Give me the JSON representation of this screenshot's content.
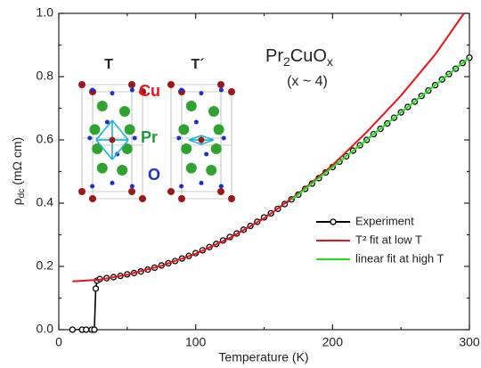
{
  "chart_data": {
    "type": "line",
    "xlabel": "Temperature (K)",
    "ylabel": {
      "symbol": "ρ",
      "sub": "dc",
      "unit": " (mΩ cm)"
    },
    "formula": {
      "a": "Pr",
      "b": "2",
      "c": "CuO",
      "d": "x"
    },
    "formula_note": "(x ~ 4)",
    "structure_labels": {
      "left": "T",
      "right": "T´",
      "cu": "Cu",
      "pr": "Pr",
      "o": "O"
    },
    "xlim": [
      0,
      300
    ],
    "ylim": [
      0,
      1.0
    ],
    "xticks": [
      0,
      100,
      200,
      300
    ],
    "yticks": [
      {
        "value": 0,
        "label": "0.0"
      },
      {
        "value": 0.2,
        "label": "0.2"
      },
      {
        "value": 0.4,
        "label": "0.4"
      },
      {
        "value": 0.6,
        "label": "0.6"
      },
      {
        "value": 0.8,
        "label": "0.8"
      },
      {
        "value": 1.0,
        "label": "1.0"
      }
    ],
    "x_minor_ticks": [
      50,
      150,
      250
    ],
    "y_minor_ticks": [
      0.1,
      0.3,
      0.5,
      0.7,
      0.9
    ],
    "series": [
      {
        "name": "Experiment",
        "color": "#000000",
        "marker": true,
        "x": [
          10,
          17,
          20,
          24,
          26,
          27,
          28,
          30,
          35,
          40,
          45,
          50,
          55,
          60,
          65,
          70,
          75,
          80,
          85,
          90,
          95,
          100,
          105,
          110,
          115,
          120,
          125,
          130,
          135,
          140,
          145,
          150,
          155,
          160,
          165,
          170,
          175,
          180,
          185,
          190,
          195,
          200,
          205,
          210,
          215,
          220,
          225,
          230,
          235,
          240,
          245,
          250,
          255,
          260,
          265,
          270,
          275,
          280,
          285,
          290,
          295,
          300
        ],
        "values": [
          0,
          0,
          0,
          0,
          0,
          0.13,
          0.155,
          0.16,
          0.163,
          0.166,
          0.17,
          0.175,
          0.179,
          0.184,
          0.19,
          0.196,
          0.203,
          0.21,
          0.217,
          0.225,
          0.233,
          0.242,
          0.251,
          0.261,
          0.271,
          0.282,
          0.293,
          0.304,
          0.316,
          0.328,
          0.341,
          0.355,
          0.368,
          0.382,
          0.397,
          0.412,
          0.427,
          0.445,
          0.462,
          0.479,
          0.497,
          0.514,
          0.531,
          0.548,
          0.566,
          0.583,
          0.6,
          0.618,
          0.635,
          0.652,
          0.67,
          0.687,
          0.704,
          0.721,
          0.739,
          0.756,
          0.773,
          0.791,
          0.808,
          0.825,
          0.843,
          0.86
        ]
      },
      {
        "name": "T² fit at low T",
        "color": "#e8141a",
        "marker": false,
        "x": [
          10,
          30,
          50,
          75,
          100,
          125,
          150,
          175,
          200,
          225,
          250,
          275,
          296
        ],
        "values": [
          0.153,
          0.158,
          0.174,
          0.202,
          0.24,
          0.29,
          0.352,
          0.43,
          0.52,
          0.625,
          0.74,
          0.87,
          1.0
        ]
      },
      {
        "name": "linear fit at high T",
        "color": "#22e01e",
        "marker": false,
        "x": [
          170,
          300
        ],
        "values": [
          0.41,
          0.86
        ]
      }
    ]
  }
}
